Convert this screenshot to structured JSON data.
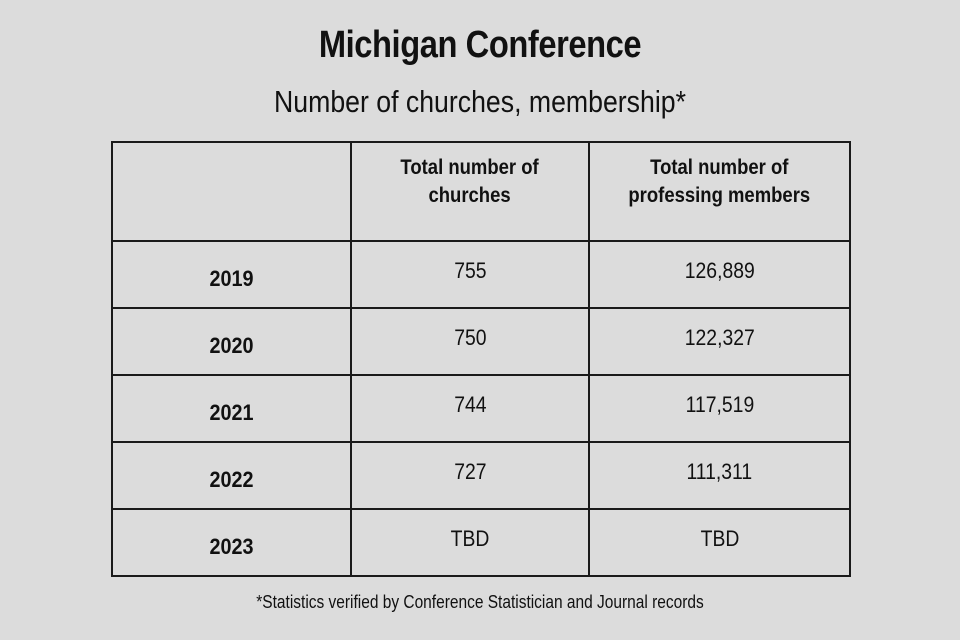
{
  "title": "Michigan Conference",
  "subtitle": "Number of churches, membership*",
  "footnote": "*Statistics verified by Conference Statistician and Journal records",
  "chart_data": {
    "type": "table",
    "columns": [
      "",
      "Total number of churches",
      "Total number of professing members"
    ],
    "header": {
      "corner": "",
      "col1_line1": "Total number of",
      "col1_line2": "churches",
      "col2_line1": "Total number of",
      "col2_line2": "professing members"
    },
    "rows": [
      {
        "year": "2019",
        "churches": "755",
        "members": "126,889"
      },
      {
        "year": "2020",
        "churches": "750",
        "members": "122,327"
      },
      {
        "year": "2021",
        "churches": "744",
        "members": "117,519"
      },
      {
        "year": "2022",
        "churches": "727",
        "members": "111,311"
      },
      {
        "year": "2023",
        "churches": "TBD",
        "members": "TBD"
      }
    ]
  }
}
